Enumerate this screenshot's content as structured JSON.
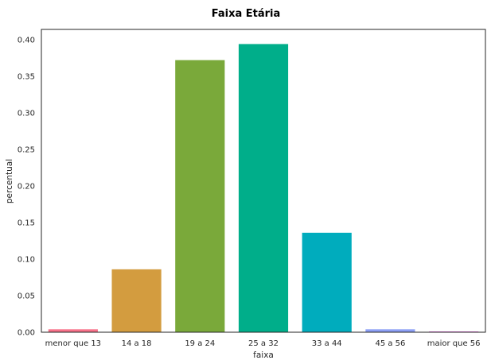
{
  "chart_data": {
    "type": "bar",
    "title": "Faixa Etária",
    "xlabel": "faixa",
    "ylabel": "percentual",
    "categories": [
      "menor que 13",
      "14 a 18",
      "19 a 24",
      "25 a 32",
      "33 a 44",
      "45 a 56",
      "maior que 56"
    ],
    "values": [
      0.004,
      0.086,
      0.372,
      0.394,
      0.136,
      0.004,
      0.001
    ],
    "colors": [
      "#f77189",
      "#d39c3f",
      "#7aa93a",
      "#00ae8a",
      "#00acbd",
      "#8c9ff5",
      "#e75fe1"
    ],
    "yticks": [
      "0.00",
      "0.05",
      "0.10",
      "0.15",
      "0.20",
      "0.25",
      "0.30",
      "0.35",
      "0.40"
    ],
    "ytick_values": [
      0.0,
      0.05,
      0.1,
      0.15,
      0.2,
      0.25,
      0.3,
      0.35,
      0.4
    ],
    "ylim": [
      0,
      0.414
    ],
    "grid": false,
    "legend": "none"
  }
}
